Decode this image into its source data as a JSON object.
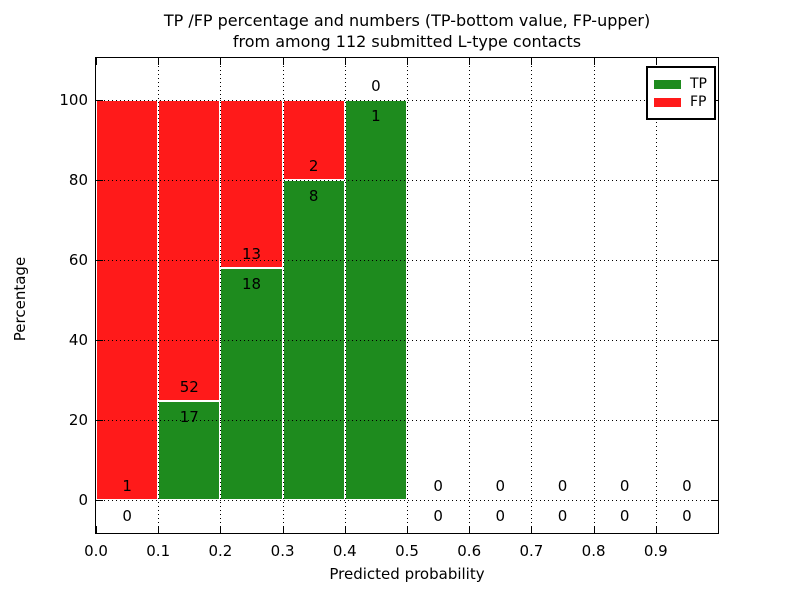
{
  "figure": {
    "title_line1": "TP /FP percentage and numbers (TP-bottom value, FP-upper)",
    "title_line2": "from among 112 submitted L-type contacts",
    "xlabel": "Predicted probability",
    "ylabel": "Percentage"
  },
  "chart_data": {
    "type": "bar",
    "stacked": true,
    "title": "TP /FP percentage and numbers (TP-bottom value, FP-upper) from among 112 submitted L-type contacts",
    "xlabel": "Predicted probability",
    "ylabel": "Percentage",
    "total_submitted": 112,
    "bin_width": 0.1,
    "xlim": [
      0.0,
      1.0
    ],
    "ylim_display": [
      -8.25,
      110.5
    ],
    "x_tick_labels": [
      "0.0",
      "0.1",
      "0.2",
      "0.3",
      "0.4",
      "0.5",
      "0.6",
      "0.7",
      "0.8",
      "0.9"
    ],
    "y_ticks": [
      0,
      20,
      40,
      60,
      80,
      100
    ],
    "grid": "dotted black at major ticks, both axes",
    "annotation_note": "TP count printed below the TP/FP boundary, FP count printed above it",
    "bins": [
      {
        "x_start": 0.0,
        "x_end": 0.1,
        "tp": 0,
        "fp": 1
      },
      {
        "x_start": 0.1,
        "x_end": 0.2,
        "tp": 17,
        "fp": 52
      },
      {
        "x_start": 0.2,
        "x_end": 0.3,
        "tp": 18,
        "fp": 13
      },
      {
        "x_start": 0.3,
        "x_end": 0.4,
        "tp": 8,
        "fp": 2
      },
      {
        "x_start": 0.4,
        "x_end": 0.5,
        "tp": 1,
        "fp": 0
      },
      {
        "x_start": 0.5,
        "x_end": 0.6,
        "tp": 0,
        "fp": 0
      },
      {
        "x_start": 0.6,
        "x_end": 0.7,
        "tp": 0,
        "fp": 0
      },
      {
        "x_start": 0.7,
        "x_end": 0.8,
        "tp": 0,
        "fp": 0
      },
      {
        "x_start": 0.8,
        "x_end": 0.9,
        "tp": 0,
        "fp": 0
      },
      {
        "x_start": 0.9,
        "x_end": 1.0,
        "tp": 0,
        "fp": 0
      }
    ],
    "colors": {
      "tp": "#1e8b1e",
      "fp": "#ff1a1a"
    },
    "legend": {
      "position": "upper right",
      "entries": [
        {
          "key": "tp",
          "label": "TP",
          "color": "#1e8b1e"
        },
        {
          "key": "fp",
          "label": "FP",
          "color": "#ff1a1a"
        }
      ]
    }
  }
}
